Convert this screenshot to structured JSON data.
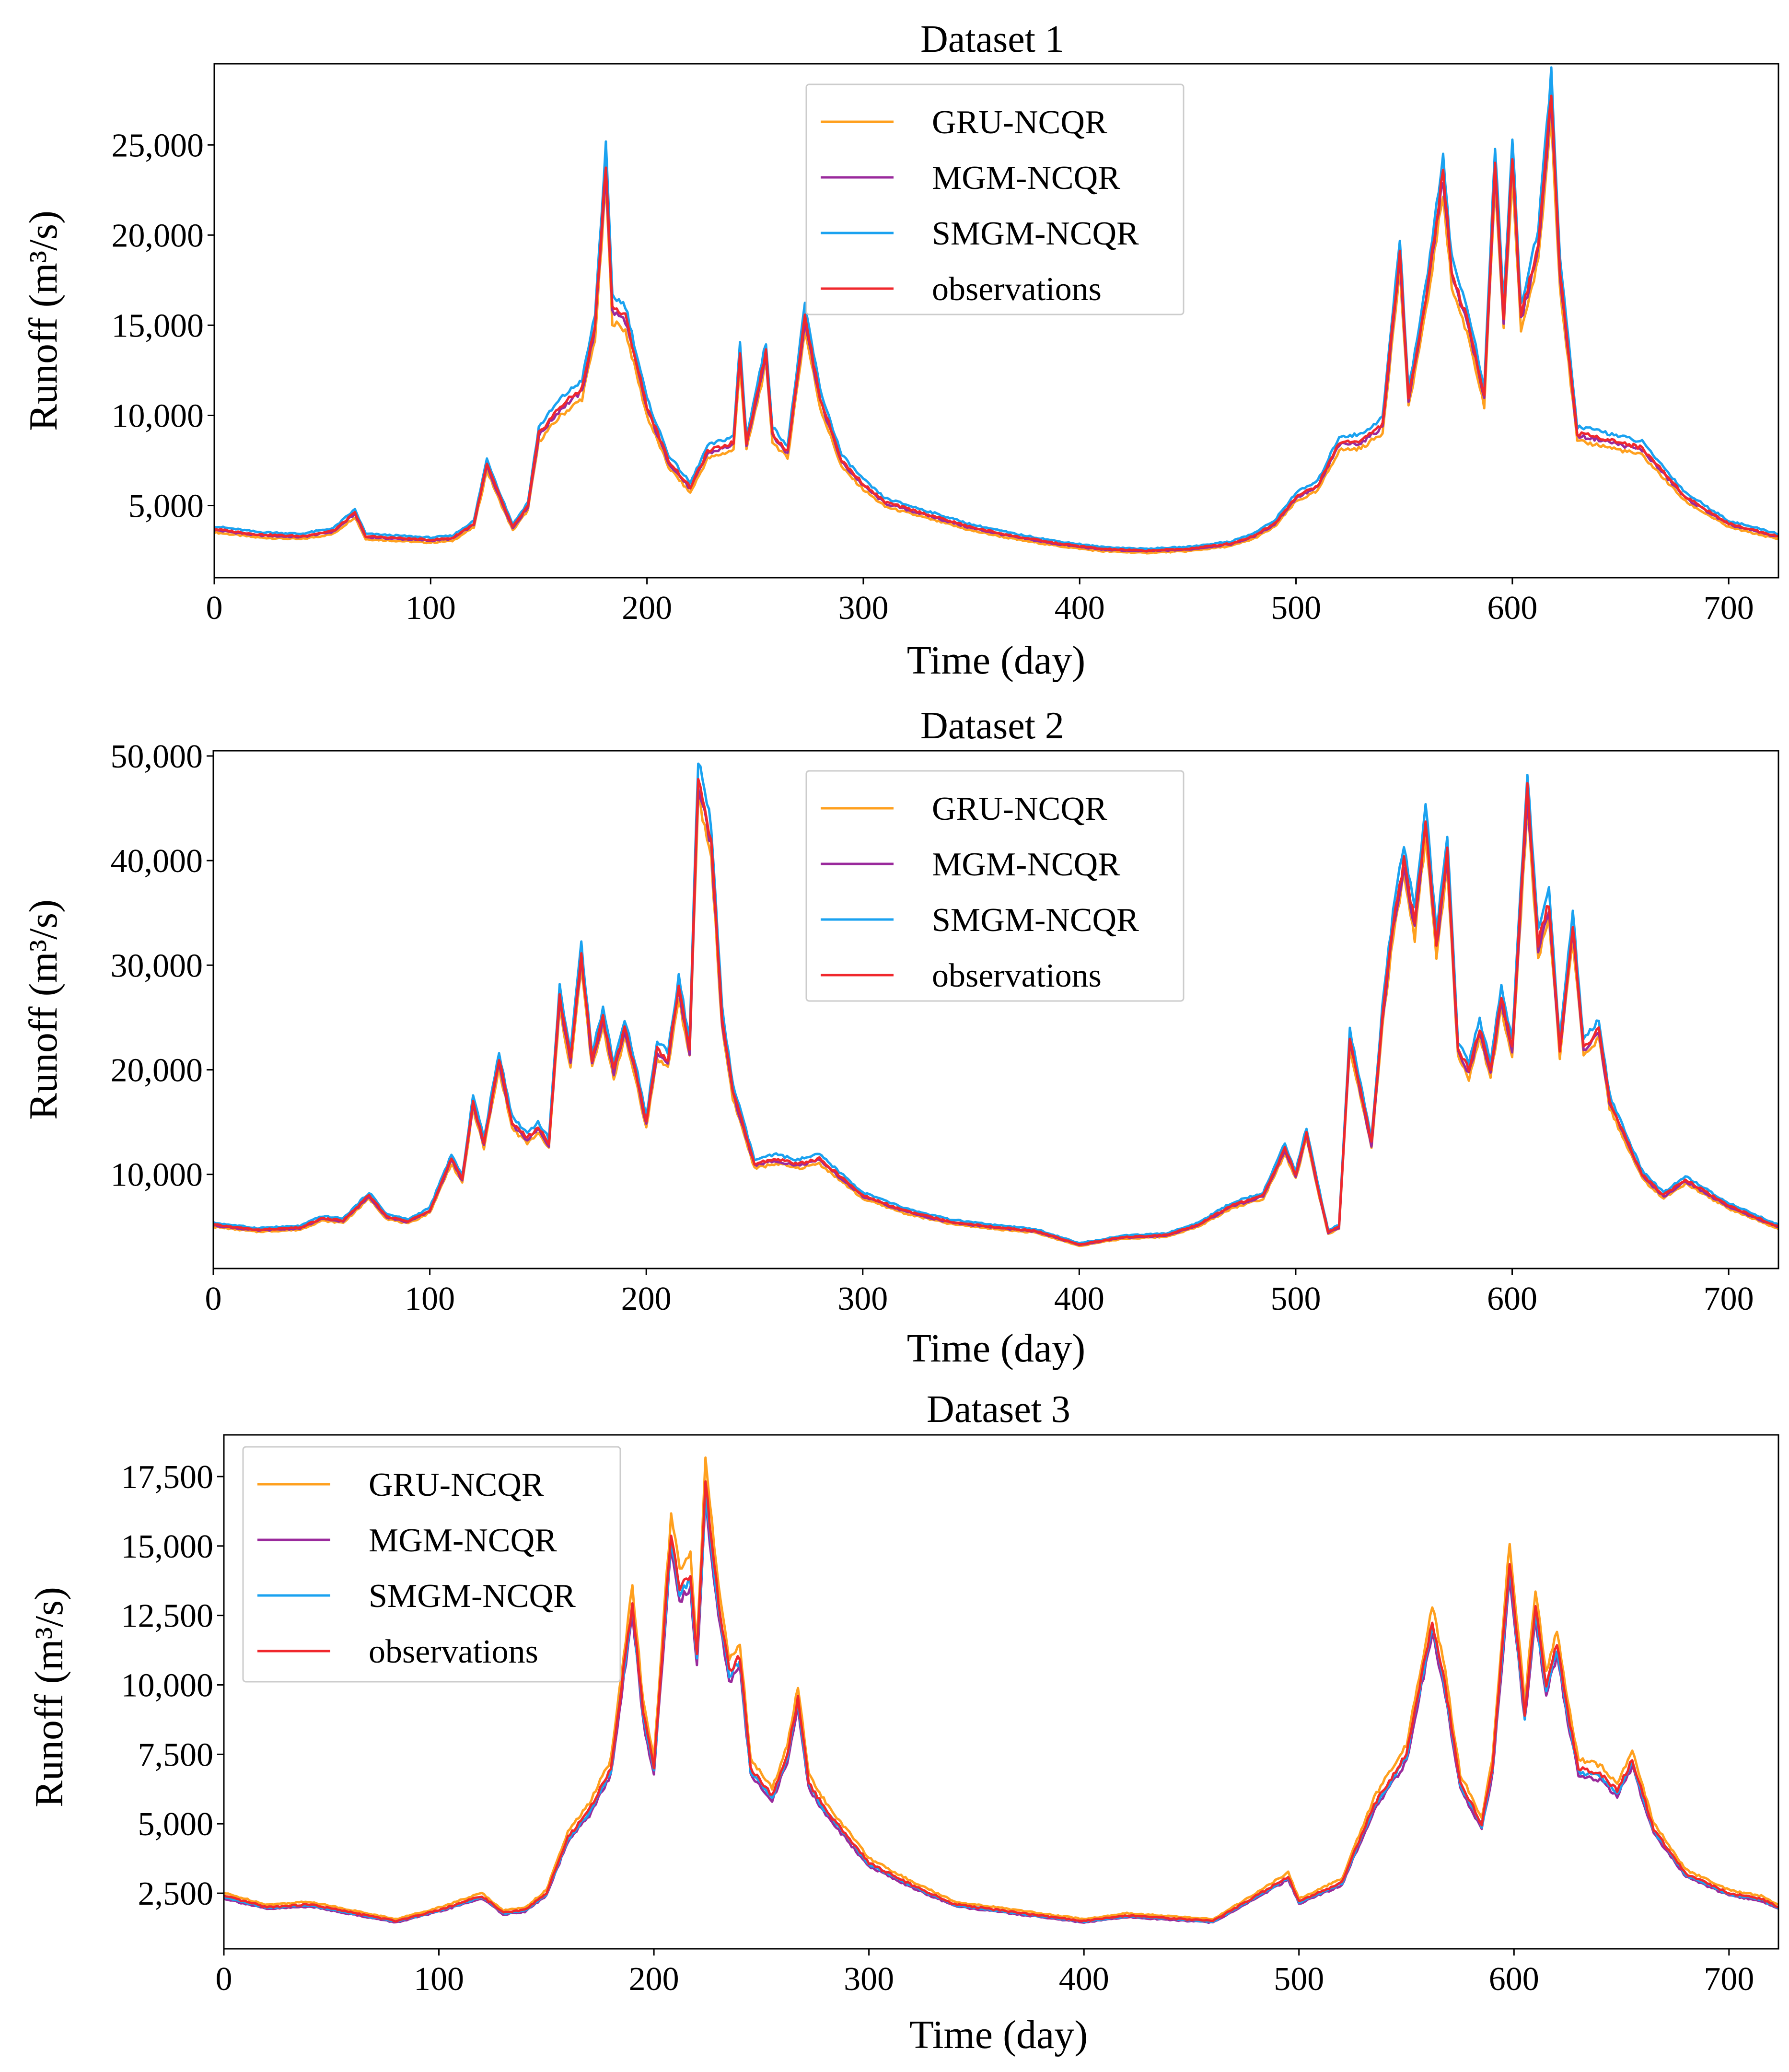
{
  "chart_data": [
    {
      "type": "line",
      "title": "Dataset 1",
      "xlabel": "Time (day)",
      "ylabel": "Runoff (m³/s)",
      "xlim": [
        0,
        723
      ],
      "ylim": [
        1000,
        29500
      ],
      "xticks": [
        0,
        100,
        200,
        300,
        400,
        500,
        600,
        700
      ],
      "xtick_labels": [
        "0",
        "100",
        "200",
        "300",
        "400",
        "500",
        "600",
        "700"
      ],
      "yticks": [
        5000,
        10000,
        15000,
        20000,
        25000
      ],
      "ytick_labels": [
        "5,000",
        "10,000",
        "15,000",
        "20,000",
        "25,000"
      ],
      "legend_position": "top-center",
      "series": [
        {
          "name": "GRU-NCQR",
          "color": "#ffa01e"
        },
        {
          "name": "MGM-NCQR",
          "color": "#9a2a9c"
        },
        {
          "name": "SMGM-NCQR",
          "color": "#1aa2f0"
        },
        {
          "name": "observations",
          "color": "#f0282d"
        }
      ],
      "observations_keypoints": [
        [
          0,
          3700
        ],
        [
          20,
          3400
        ],
        [
          40,
          3300
        ],
        [
          55,
          3600
        ],
        [
          65,
          4600
        ],
        [
          70,
          3300
        ],
        [
          100,
          3100
        ],
        [
          110,
          3200
        ],
        [
          120,
          4000
        ],
        [
          126,
          7300
        ],
        [
          132,
          5500
        ],
        [
          138,
          3800
        ],
        [
          145,
          5000
        ],
        [
          150,
          9000
        ],
        [
          160,
          10500
        ],
        [
          170,
          11500
        ],
        [
          176,
          15000
        ],
        [
          181,
          24000
        ],
        [
          184,
          16000
        ],
        [
          190,
          15500
        ],
        [
          195,
          13000
        ],
        [
          200,
          10500
        ],
        [
          210,
          7500
        ],
        [
          220,
          6000
        ],
        [
          228,
          8000
        ],
        [
          240,
          8500
        ],
        [
          243,
          13500
        ],
        [
          246,
          8500
        ],
        [
          255,
          13500
        ],
        [
          258,
          9000
        ],
        [
          265,
          8000
        ],
        [
          273,
          15500
        ],
        [
          280,
          11000
        ],
        [
          290,
          7500
        ],
        [
          300,
          6200
        ],
        [
          310,
          5200
        ],
        [
          330,
          4500
        ],
        [
          350,
          3800
        ],
        [
          370,
          3300
        ],
        [
          390,
          2900
        ],
        [
          410,
          2600
        ],
        [
          430,
          2500
        ],
        [
          450,
          2600
        ],
        [
          470,
          2900
        ],
        [
          480,
          3300
        ],
        [
          490,
          4000
        ],
        [
          500,
          5500
        ],
        [
          510,
          6100
        ],
        [
          520,
          8500
        ],
        [
          530,
          8600
        ],
        [
          540,
          9500
        ],
        [
          548,
          19000
        ],
        [
          552,
          11000
        ],
        [
          560,
          16500
        ],
        [
          568,
          23500
        ],
        [
          572,
          18000
        ],
        [
          580,
          15000
        ],
        [
          587,
          11000
        ],
        [
          592,
          24000
        ],
        [
          596,
          15500
        ],
        [
          600,
          24500
        ],
        [
          604,
          15500
        ],
        [
          612,
          19500
        ],
        [
          618,
          28000
        ],
        [
          622,
          18000
        ],
        [
          630,
          9000
        ],
        [
          640,
          8800
        ],
        [
          660,
          8200
        ],
        [
          680,
          5500
        ],
        [
          700,
          4000
        ],
        [
          723,
          3300
        ]
      ],
      "model_offsets": {
        "GRU-NCQR": -0.05,
        "MGM-NCQR": -0.015,
        "SMGM-NCQR": 0.04
      }
    },
    {
      "type": "line",
      "title": "Dataset 2",
      "xlabel": "Time (day)",
      "ylabel": "Runoff (m³/s)",
      "xlim": [
        0,
        723
      ],
      "ylim": [
        1000,
        50500
      ],
      "xticks": [
        0,
        100,
        200,
        300,
        400,
        500,
        600,
        700
      ],
      "xtick_labels": [
        "0",
        "100",
        "200",
        "300",
        "400",
        "500",
        "600",
        "700"
      ],
      "yticks": [
        10000,
        20000,
        30000,
        40000,
        50000
      ],
      "ytick_labels": [
        "10,000",
        "20,000",
        "30,000",
        "40,000",
        "50,000"
      ],
      "legend_position": "top-center",
      "series": [
        {
          "name": "GRU-NCQR",
          "color": "#ffa01e"
        },
        {
          "name": "MGM-NCQR",
          "color": "#9a2a9c"
        },
        {
          "name": "SMGM-NCQR",
          "color": "#1aa2f0"
        },
        {
          "name": "observations",
          "color": "#f0282d"
        }
      ],
      "observations_keypoints": [
        [
          0,
          5200
        ],
        [
          20,
          4700
        ],
        [
          40,
          4900
        ],
        [
          50,
          5800
        ],
        [
          60,
          5600
        ],
        [
          72,
          8000
        ],
        [
          80,
          6000
        ],
        [
          90,
          5500
        ],
        [
          100,
          6600
        ],
        [
          110,
          11500
        ],
        [
          115,
          9500
        ],
        [
          120,
          17000
        ],
        [
          125,
          13000
        ],
        [
          132,
          21000
        ],
        [
          138,
          15000
        ],
        [
          145,
          13500
        ],
        [
          150,
          14500
        ],
        [
          155,
          13000
        ],
        [
          160,
          27000
        ],
        [
          165,
          21000
        ],
        [
          170,
          31000
        ],
        [
          175,
          21000
        ],
        [
          180,
          25000
        ],
        [
          185,
          20000
        ],
        [
          190,
          24000
        ],
        [
          195,
          20000
        ],
        [
          200,
          15000
        ],
        [
          205,
          22000
        ],
        [
          210,
          21000
        ],
        [
          215,
          28000
        ],
        [
          220,
          22000
        ],
        [
          224,
          48000
        ],
        [
          230,
          42000
        ],
        [
          235,
          25000
        ],
        [
          240,
          18000
        ],
        [
          250,
          11000
        ],
        [
          260,
          11500
        ],
        [
          270,
          11000
        ],
        [
          280,
          11500
        ],
        [
          300,
          8000
        ],
        [
          320,
          6500
        ],
        [
          340,
          5500
        ],
        [
          360,
          5000
        ],
        [
          380,
          4600
        ],
        [
          400,
          3300
        ],
        [
          420,
          4000
        ],
        [
          440,
          4200
        ],
        [
          455,
          5200
        ],
        [
          470,
          7000
        ],
        [
          485,
          8000
        ],
        [
          495,
          12500
        ],
        [
          500,
          10000
        ],
        [
          505,
          14000
        ],
        [
          510,
          9000
        ],
        [
          515,
          4500
        ],
        [
          520,
          5000
        ],
        [
          525,
          23000
        ],
        [
          530,
          18000
        ],
        [
          535,
          13000
        ],
        [
          540,
          25000
        ],
        [
          545,
          34000
        ],
        [
          550,
          40000
        ],
        [
          555,
          34000
        ],
        [
          560,
          44000
        ],
        [
          565,
          32000
        ],
        [
          570,
          41000
        ],
        [
          575,
          22000
        ],
        [
          580,
          20000
        ],
        [
          585,
          24000
        ],
        [
          590,
          20000
        ],
        [
          595,
          27000
        ],
        [
          600,
          22000
        ],
        [
          607,
          47000
        ],
        [
          612,
          32000
        ],
        [
          617,
          36000
        ],
        [
          622,
          22000
        ],
        [
          628,
          34000
        ],
        [
          633,
          22000
        ],
        [
          640,
          24000
        ],
        [
          645,
          17000
        ],
        [
          660,
          10000
        ],
        [
          670,
          8000
        ],
        [
          680,
          9500
        ],
        [
          700,
          7000
        ],
        [
          723,
          5000
        ]
      ],
      "model_offsets": {
        "GRU-NCQR": -0.04,
        "MGM-NCQR": -0.015,
        "SMGM-NCQR": 0.035
      }
    },
    {
      "type": "line",
      "title": "Dataset 3",
      "xlabel": "Time (day)",
      "ylabel": "Runoff (m³/s)",
      "xlim": [
        0,
        723
      ],
      "ylim": [
        500,
        19000
      ],
      "xticks": [
        0,
        100,
        200,
        300,
        400,
        500,
        600,
        700
      ],
      "xtick_labels": [
        "0",
        "100",
        "200",
        "300",
        "400",
        "500",
        "600",
        "700"
      ],
      "yticks": [
        2500,
        5000,
        7500,
        10000,
        12500,
        15000,
        17500
      ],
      "ytick_labels": [
        "2,500",
        "5,000",
        "7,500",
        "10,000",
        "12,500",
        "15,000",
        "17,500"
      ],
      "legend_position": "top-left",
      "series": [
        {
          "name": "GRU-NCQR",
          "color": "#ffa01e"
        },
        {
          "name": "MGM-NCQR",
          "color": "#9a2a9c"
        },
        {
          "name": "SMGM-NCQR",
          "color": "#1aa2f0"
        },
        {
          "name": "observations",
          "color": "#f0282d"
        }
      ],
      "observations_keypoints": [
        [
          0,
          2400
        ],
        [
          20,
          2000
        ],
        [
          40,
          2100
        ],
        [
          60,
          1800
        ],
        [
          80,
          1500
        ],
        [
          100,
          1900
        ],
        [
          120,
          2400
        ],
        [
          130,
          1800
        ],
        [
          140,
          1900
        ],
        [
          150,
          2500
        ],
        [
          160,
          4500
        ],
        [
          170,
          5500
        ],
        [
          180,
          7000
        ],
        [
          190,
          13000
        ],
        [
          195,
          9000
        ],
        [
          200,
          7000
        ],
        [
          208,
          15500
        ],
        [
          212,
          13500
        ],
        [
          217,
          14000
        ],
        [
          220,
          11000
        ],
        [
          224,
          17200
        ],
        [
          230,
          13000
        ],
        [
          235,
          10500
        ],
        [
          240,
          11000
        ],
        [
          245,
          7000
        ],
        [
          255,
          6000
        ],
        [
          262,
          7500
        ],
        [
          267,
          9500
        ],
        [
          272,
          6500
        ],
        [
          280,
          5500
        ],
        [
          300,
          3600
        ],
        [
          320,
          2800
        ],
        [
          340,
          2100
        ],
        [
          360,
          1900
        ],
        [
          380,
          1700
        ],
        [
          400,
          1500
        ],
        [
          420,
          1700
        ],
        [
          440,
          1600
        ],
        [
          460,
          1500
        ],
        [
          480,
          2400
        ],
        [
          495,
          3100
        ],
        [
          500,
          2200
        ],
        [
          520,
          2900
        ],
        [
          535,
          5700
        ],
        [
          550,
          7500
        ],
        [
          562,
          12300
        ],
        [
          568,
          10000
        ],
        [
          575,
          6500
        ],
        [
          585,
          5000
        ],
        [
          590,
          7000
        ],
        [
          598,
          14500
        ],
        [
          605,
          9000
        ],
        [
          610,
          12800
        ],
        [
          615,
          10000
        ],
        [
          620,
          11500
        ],
        [
          625,
          9000
        ],
        [
          630,
          7000
        ],
        [
          640,
          6800
        ],
        [
          648,
          6200
        ],
        [
          655,
          7300
        ],
        [
          665,
          4800
        ],
        [
          680,
          3200
        ],
        [
          700,
          2500
        ],
        [
          715,
          2300
        ],
        [
          723,
          2000
        ]
      ],
      "model_offsets": {
        "GRU-NCQR": 0.045,
        "MGM-NCQR": -0.035,
        "SMGM-NCQR": -0.015
      }
    }
  ]
}
